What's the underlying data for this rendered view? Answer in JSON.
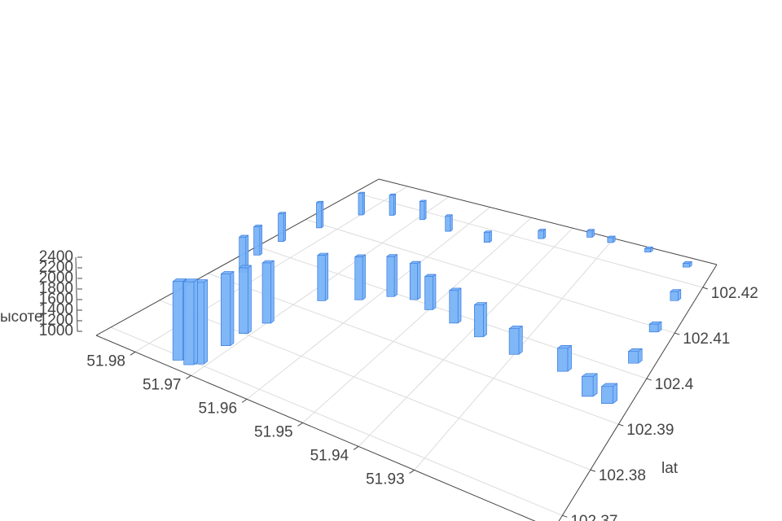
{
  "chart_data": {
    "type": "bar3d",
    "x_ticks_axis": "lon",
    "y_title": "lat",
    "z_title": "ысоте",
    "xlim": [
      51.905,
      51.987
    ],
    "ylim": [
      102.367,
      102.425
    ],
    "zlim": [
      1000,
      2400
    ],
    "xticks": [
      51.93,
      51.94,
      51.95,
      51.96,
      51.97,
      51.98
    ],
    "yticks": [
      102.37,
      102.38,
      102.39,
      102.4,
      102.41,
      102.42
    ],
    "zticks": [
      1000,
      1200,
      1400,
      1600,
      1800,
      2000,
      2200,
      2400
    ],
    "grid": true,
    "series": [
      {
        "color": "#79b3f7",
        "x": [
          51.974,
          51.972,
          51.971,
          51.971,
          51.971,
          51.97,
          51.967,
          51.962,
          51.958,
          51.954,
          51.95,
          51.944,
          51.938,
          51.93,
          51.92,
          51.913,
          51.909,
          51.909,
          51.909,
          51.909,
          51.911,
          51.921,
          51.93,
          51.935,
          51.944,
          51.953,
          51.962,
          51.969,
          51.975,
          51.98,
          51.983,
          51.985,
          51.985,
          51.983
        ],
        "y": [
          102.369,
          102.369,
          102.37,
          102.376,
          102.38,
          102.384,
          102.393,
          102.396,
          102.399,
          102.4,
          102.399,
          102.398,
          102.397,
          102.396,
          102.396,
          102.393,
          102.393,
          102.402,
          102.409,
          102.416,
          102.423,
          102.424,
          102.424,
          102.424,
          102.421,
          102.417,
          102.417,
          102.418,
          102.417,
          102.415,
          102.409,
          102.403,
          102.398,
          102.393
        ],
        "z": [
          2350,
          2400,
          2380,
          2300,
          2250,
          2200,
          2000,
          1950,
          1900,
          1800,
          1700,
          1650,
          1600,
          1450,
          1380,
          1300,
          1250,
          1200,
          1150,
          1200,
          1100,
          1100,
          1150,
          1200,
          1250,
          1300,
          1500,
          1650,
          1750,
          1800,
          1850,
          1850,
          1800,
          1900
        ]
      }
    ]
  }
}
